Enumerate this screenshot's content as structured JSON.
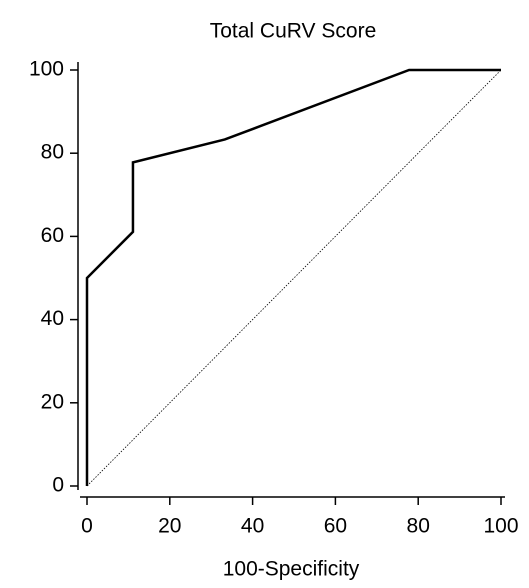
{
  "chart_data": {
    "type": "line",
    "title": "Total CuRV Score",
    "x_label": "100-Specificity",
    "x": [
      0,
      0,
      11.1,
      11.1,
      33.3,
      77.8,
      100
    ],
    "values": [
      0,
      50,
      61.1,
      77.8,
      83.3,
      100,
      100
    ],
    "color": "#000000",
    "xlim": [
      0,
      100
    ],
    "ylim": [
      0,
      100
    ],
    "xticks": [
      0,
      20,
      40,
      60,
      80,
      100
    ],
    "yticks": [
      0,
      20,
      40,
      60,
      80,
      100
    ],
    "diagonal": true
  }
}
